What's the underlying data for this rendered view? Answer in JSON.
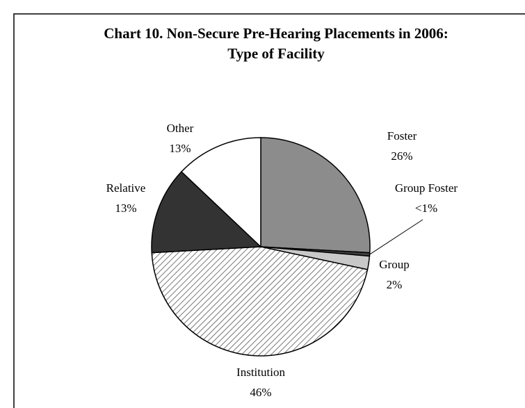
{
  "chart_data": {
    "type": "pie",
    "title": [
      "Chart 10.  Non-Secure Pre-Hearing Placements in 2006:",
      "Type of Facility"
    ],
    "categories": [
      "Foster",
      "Group Foster",
      "Group",
      "Institution",
      "Relative",
      "Other"
    ],
    "values": [
      26,
      0.5,
      2,
      46,
      13,
      13
    ],
    "value_labels": [
      "26%",
      "<1%",
      "2%",
      "46%",
      "13%",
      "13%"
    ],
    "colors": [
      "#8c8c8c",
      "#404040",
      "#c8c8c8",
      "hatch",
      "#333333",
      "#ffffff"
    ]
  }
}
